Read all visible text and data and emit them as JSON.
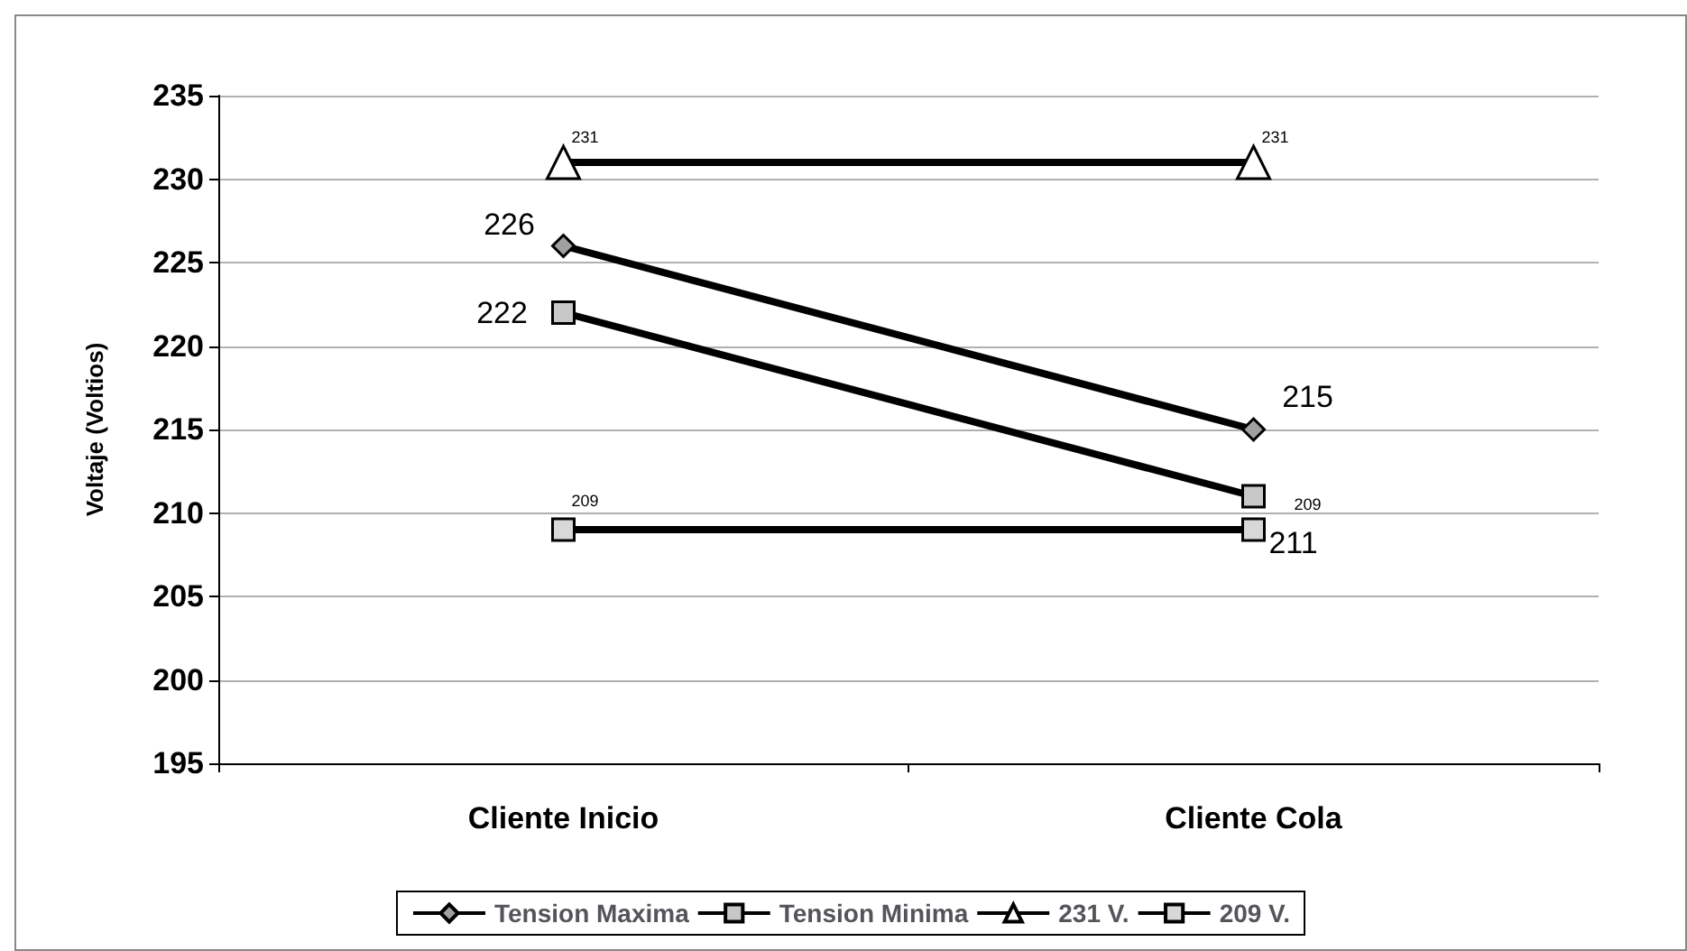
{
  "chart_data": {
    "type": "line",
    "ylabel": "Voltaje (Voltios)",
    "categories": [
      "Cliente Inicio",
      "Cliente Cola"
    ],
    "series": [
      {
        "name": "Tension Maxima",
        "color": "#000000",
        "marker": "diamond",
        "values": [
          226,
          215
        ]
      },
      {
        "name": "Tension Minima",
        "color": "#000000",
        "marker": "square",
        "values": [
          222,
          211
        ]
      },
      {
        "name": "231 V.",
        "color": "#000000",
        "marker": "triangle",
        "values": [
          231,
          231
        ]
      },
      {
        "name": "209 V.",
        "color": "#000000",
        "marker": "square",
        "values": [
          209,
          209
        ]
      }
    ],
    "ylim": [
      195,
      235
    ],
    "yticks": [
      195,
      200,
      205,
      210,
      215,
      220,
      225,
      230,
      235
    ],
    "grid": "y",
    "legend": "bottom",
    "data_labels": true
  }
}
